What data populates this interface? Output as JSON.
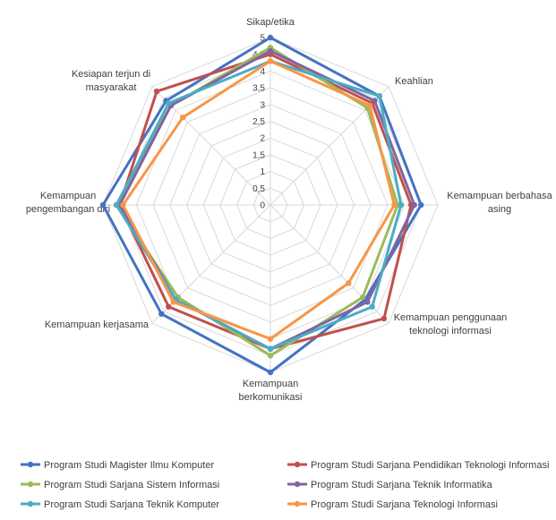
{
  "chart_data": {
    "type": "radar",
    "title": "",
    "axes": [
      [
        "Sikap/etika"
      ],
      [
        "Keahlian"
      ],
      [
        "Kemampuan berbahasa",
        "asing"
      ],
      [
        "Kemampuan penggunaan",
        "teknologi informasi"
      ],
      [
        "Kemampuan",
        "berkomunikasi"
      ],
      [
        "Kemampuan kerjasama"
      ],
      [
        "Kemampuan",
        "pengembangan diri"
      ],
      [
        "Kesiapan terjun di",
        "masyarakat"
      ]
    ],
    "rlim": [
      0,
      5
    ],
    "ticks": [
      "0",
      "0,5",
      "1",
      "1,5",
      "2",
      "2,5",
      "3",
      "3,5",
      "4",
      "4,5",
      "5"
    ],
    "series": [
      {
        "name": "Program Studi Magister Ilmu Komputer",
        "color": "#4472C4",
        "values": [
          5.0,
          4.6,
          4.5,
          4.0,
          5.0,
          4.6,
          5.0,
          4.4
        ]
      },
      {
        "name": "Program Studi Sarjana Pendidikan Teknologi Informasi",
        "color": "#C0504D",
        "values": [
          4.5,
          4.3,
          4.2,
          4.8,
          4.3,
          4.3,
          4.5,
          4.8
        ]
      },
      {
        "name": "Program Studi Sarjana Sistem Informasi",
        "color": "#9BBB59",
        "values": [
          4.7,
          4.1,
          3.8,
          3.9,
          4.5,
          3.9,
          4.6,
          4.2
        ]
      },
      {
        "name": "Program Studi Sarjana Teknik Informatika",
        "color": "#8064A2",
        "values": [
          4.6,
          4.4,
          4.3,
          4.1,
          4.3,
          4.0,
          4.5,
          4.2
        ]
      },
      {
        "name": "Program Studi Sarjana Teknik Komputer",
        "color": "#4BACC6",
        "values": [
          4.3,
          4.6,
          3.9,
          4.3,
          4.3,
          4.0,
          4.6,
          4.3
        ]
      },
      {
        "name": "Program Studi Sarjana Teknologi Informasi",
        "color": "#F79646",
        "values": [
          4.3,
          4.2,
          3.7,
          3.3,
          4.0,
          4.1,
          4.4,
          3.7
        ]
      }
    ],
    "legend_position": "bottom"
  }
}
